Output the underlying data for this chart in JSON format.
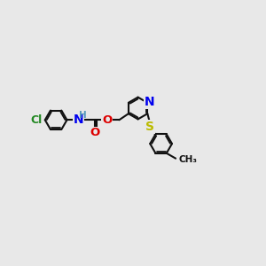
{
  "bg": "#e8e8e8",
  "bc": "#111111",
  "lw": 1.5,
  "dlw": 1.3,
  "doff": 0.055,
  "r": 0.42,
  "fs": 9.5,
  "ac_N": "#0000ee",
  "ac_O": "#dd0000",
  "ac_S": "#bbbb00",
  "ac_Cl": "#228822",
  "ac_H": "#5599bb",
  "figsize": [
    3.0,
    3.0
  ],
  "dpi": 100,
  "xlim": [
    0,
    10
  ],
  "ylim": [
    0,
    10
  ]
}
